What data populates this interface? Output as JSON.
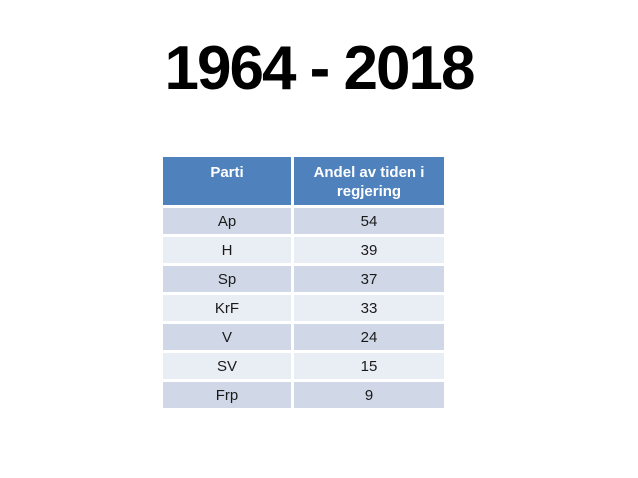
{
  "page": {
    "title": "1964 - 2018"
  },
  "table": {
    "headers": [
      "Parti",
      "Andel av tiden i regjering"
    ],
    "rows": [
      [
        "Ap",
        "54"
      ],
      [
        "H",
        "39"
      ],
      [
        "Sp",
        "37"
      ],
      [
        "KrF",
        "33"
      ],
      [
        "V",
        "24"
      ],
      [
        "SV",
        "15"
      ],
      [
        "Frp",
        "9"
      ]
    ]
  },
  "chart_data": {
    "type": "table",
    "title": "1964 - 2018",
    "columns": [
      "Parti",
      "Andel av tiden i regjering"
    ],
    "rows": [
      [
        "Ap",
        54
      ],
      [
        "H",
        39
      ],
      [
        "Sp",
        37
      ],
      [
        "KrF",
        33
      ],
      [
        "V",
        24
      ],
      [
        "SV",
        15
      ],
      [
        "Frp",
        9
      ]
    ]
  },
  "colors": {
    "header_bg": "#4f81bd",
    "header_text": "#ffffff",
    "row_dark": "#d0d8e8",
    "row_light": "#e9edf4",
    "body_text": "#1a1a1a",
    "title_text": "#000000",
    "page_bg": "#ffffff"
  }
}
